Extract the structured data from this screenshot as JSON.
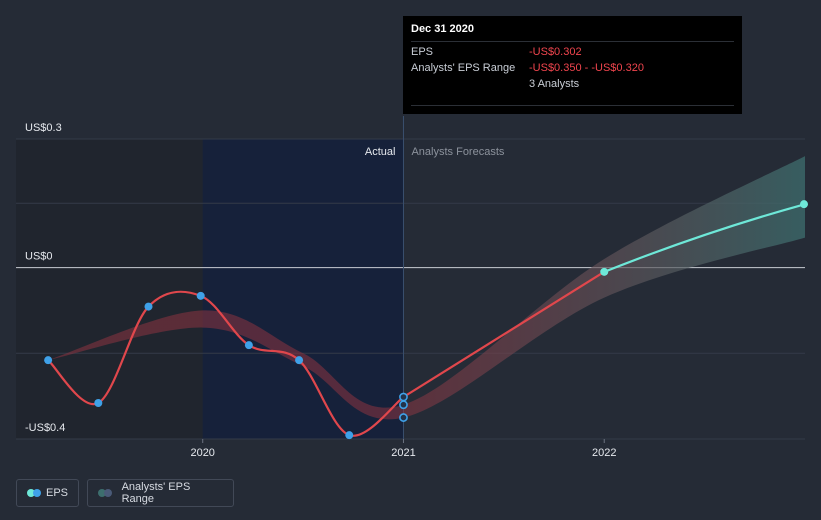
{
  "tooltip": {
    "date": "Dec 31 2020",
    "eps_label": "EPS",
    "eps_value": "-US$0.302",
    "range_label": "Analysts' EPS Range",
    "range_value": "-US$0.350 - -US$0.320",
    "analysts": "3 Analysts"
  },
  "legend": {
    "eps": "EPS",
    "range": "Analysts' EPS Range"
  },
  "colors": {
    "background": "#252b36",
    "actual_region": "#16213a",
    "eps_line": "#e0474c",
    "forecast_line": "#6ee8d8",
    "dot": "#3fa1e8",
    "band_past": "#8b3340",
    "band_forecast_start": "#8b3340",
    "band_forecast_end": "#3d6e6e"
  },
  "chart_data": {
    "type": "line",
    "y_tick_labels": [
      {
        "value": 0.3,
        "label": "US$0.3"
      },
      {
        "value": 0.0,
        "label": "US$0"
      },
      {
        "value": -0.4,
        "label": "-US$0.4"
      }
    ],
    "ylim": [
      -0.4,
      0.3
    ],
    "x_tick_labels": [
      {
        "value": 2020.0,
        "label": "2020"
      },
      {
        "value": 2021.0,
        "label": "2021"
      },
      {
        "value": 2022.0,
        "label": "2022"
      }
    ],
    "xlim": [
      2019.07,
      2023.0
    ],
    "region_labels": {
      "actual": "Actual",
      "forecast": "Analysts Forecasts"
    },
    "actual_region_start": 2020.0,
    "divider": 2021.0,
    "series": [
      {
        "name": "EPS",
        "points": [
          {
            "x": 2019.23,
            "y": -0.216
          },
          {
            "x": 2019.48,
            "y": -0.316
          },
          {
            "x": 2019.73,
            "y": -0.091
          },
          {
            "x": 2019.99,
            "y": -0.066
          },
          {
            "x": 2020.23,
            "y": -0.181
          },
          {
            "x": 2020.48,
            "y": -0.216
          },
          {
            "x": 2020.73,
            "y": -0.391
          },
          {
            "x": 2021.0,
            "y": -0.302
          }
        ]
      },
      {
        "name": "EPS forecast",
        "points": [
          {
            "x": 2021.0,
            "y": -0.302
          },
          {
            "x": 2022.0,
            "y": -0.01
          },
          {
            "x": 2023.0,
            "y": 0.148
          }
        ]
      }
    ],
    "analyst_range_points_at_2021": [
      -0.302,
      -0.32,
      -0.35
    ],
    "analysts_range_band": [
      {
        "x": 2019.23,
        "low": -0.216,
        "high": -0.216
      },
      {
        "x": 2020.0,
        "low": -0.14,
        "high": -0.1
      },
      {
        "x": 2020.5,
        "low": -0.23,
        "high": -0.2
      },
      {
        "x": 2021.0,
        "low": -0.35,
        "high": -0.32
      },
      {
        "x": 2022.0,
        "low": -0.07,
        "high": 0.02
      },
      {
        "x": 2023.0,
        "low": 0.07,
        "high": 0.26
      }
    ]
  }
}
